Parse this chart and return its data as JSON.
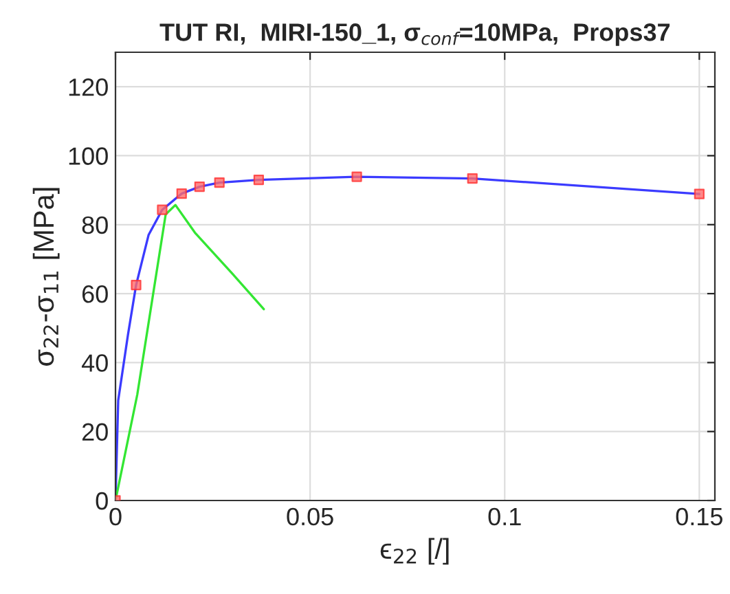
{
  "chart_data": {
    "type": "line",
    "title": "TUT RI,  MIRI-150_1, σ$_{conf}$=10MPa,  Props37",
    "xlabel": "ϵ$_{22}$ [/]",
    "ylabel": "σ$_{22}$-σ$_{11}$ [MPa]",
    "xlim": [
      0,
      0.154
    ],
    "ylim": [
      0,
      130
    ],
    "xticks": [
      0,
      0.05,
      0.1,
      0.15
    ],
    "yticks": [
      0,
      20,
      40,
      60,
      80,
      100,
      120
    ],
    "grid": true,
    "series": [
      {
        "color": "#3b3bff",
        "marker": "none",
        "x": [
          0,
          0.0007,
          0.0032,
          0.0053,
          0.0085,
          0.012,
          0.017,
          0.0216,
          0.0267,
          0.0368,
          0.062,
          0.0917,
          0.15
        ],
        "values": [
          0,
          29,
          48,
          62.5,
          77,
          84.3,
          89,
          91,
          92.2,
          93,
          93.9,
          93.4,
          88.9
        ]
      },
      {
        "type": "line",
        "color": "#33e633",
        "marker": "none",
        "x": [
          0,
          0.0056,
          0.0129,
          0.0154,
          0.0204,
          0.03,
          0.0381
        ],
        "values": [
          0,
          30.7,
          83,
          85.7,
          77.7,
          65.8,
          55.5
        ]
      },
      {
        "type": "scatter",
        "color": "#ff6b6b",
        "marker": "square",
        "x": [
          0,
          0.0053,
          0.012,
          0.017,
          0.0216,
          0.0267,
          0.0368,
          0.062,
          0.0917,
          0.15
        ],
        "values": [
          0,
          62.5,
          84.3,
          89,
          91,
          92.2,
          93,
          93.9,
          93.4,
          88.9
        ]
      }
    ]
  }
}
